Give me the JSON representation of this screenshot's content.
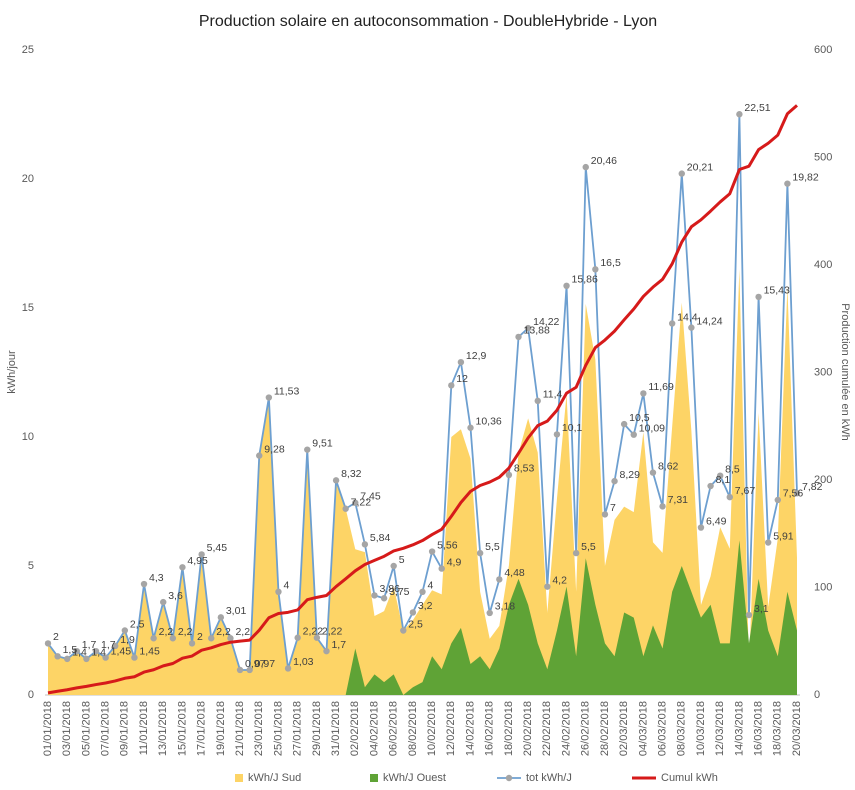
{
  "chart_data": {
    "type": "combo",
    "title": "Production solaire en autoconsommation - DoubleHybride - Lyon",
    "y_label": "kWh/jour",
    "y2_label": "Production cumulée en kWh",
    "categories": [
      "01/01/2018",
      null,
      "03/01/2018",
      null,
      "05/01/2018",
      null,
      "07/01/2018",
      null,
      "09/01/2018",
      null,
      "11/01/2018",
      null,
      "13/01/2018",
      null,
      "15/01/2018",
      null,
      "17/01/2018",
      null,
      "19/01/2018",
      null,
      "21/01/2018",
      null,
      "23/01/2018",
      null,
      "25/01/2018",
      null,
      "27/01/2018",
      null,
      "29/01/2018",
      null,
      "31/01/2018",
      null,
      "02/02/2018",
      null,
      "04/02/2018",
      null,
      "06/02/2018",
      null,
      "08/02/2018",
      null,
      "10/02/2018",
      null,
      "12/02/2018",
      null,
      "14/02/2018",
      null,
      "16/02/2018",
      null,
      "18/02/2018",
      null,
      "20/02/2018",
      null,
      "22/02/2018",
      null,
      "24/02/2018",
      null,
      "26/02/2018",
      null,
      "28/02/2018",
      null,
      "02/03/2018",
      null,
      "04/03/2018",
      null,
      "06/03/2018",
      null,
      "08/03/2018",
      null,
      "10/03/2018",
      null,
      "12/03/2018",
      null,
      "14/03/2018",
      null,
      "16/03/2018",
      null,
      "18/03/2018",
      null,
      "20/03/2018"
    ],
    "ylim": [
      0,
      25
    ],
    "yticks": [
      0,
      5,
      10,
      15,
      20,
      25
    ],
    "y2lim": [
      0,
      600
    ],
    "y2ticks": [
      0,
      100,
      200,
      300,
      400,
      500,
      600
    ],
    "grid": false,
    "legend": "bottom",
    "series": [
      {
        "name": "kWh/J Sud",
        "kind": "area",
        "color": "#fdd466",
        "values": [
          2,
          1.5,
          1.4,
          1.7,
          1.4,
          1.7,
          1.45,
          1.9,
          2.5,
          1.45,
          4.3,
          2.2,
          3.6,
          2.2,
          4.95,
          2,
          5.45,
          2.2,
          3.01,
          2.2,
          0.97,
          0.97,
          9.28,
          11.53,
          4,
          1.03,
          2.22,
          9.51,
          2.22,
          1.7,
          8.32,
          7.22,
          5.65,
          5.54,
          3.06,
          3.25,
          4.2,
          2.5,
          2.9,
          3.5,
          4.06,
          3.9,
          10,
          10.3,
          9.16,
          4,
          2.18,
          2.68,
          5.03,
          9.38,
          10.72,
          9.4,
          3.2,
          7.6,
          11.66,
          4,
          15.16,
          13,
          5,
          6.79,
          7.3,
          7.09,
          10.19,
          5.92,
          5.51,
          10.4,
          15.21,
          10.24,
          3.49,
          4.6,
          6.5,
          5.67,
          16.51,
          1.1,
          10.93,
          3.41,
          6.06,
          15.82,
          5.32
        ]
      },
      {
        "name": "kWh/J Ouest",
        "kind": "area",
        "color": "#5fa336",
        "values": [
          0,
          0,
          0,
          0,
          0,
          0,
          0,
          0,
          0,
          0,
          0,
          0,
          0,
          0,
          0,
          0,
          0,
          0,
          0,
          0,
          0,
          0,
          0,
          0,
          0,
          0,
          0,
          0,
          0,
          0,
          0,
          0,
          1.8,
          0.3,
          0.8,
          0.5,
          0.8,
          0,
          0.3,
          0.5,
          1.5,
          1,
          2,
          2.6,
          1.2,
          1.5,
          1,
          1.8,
          3.5,
          4.5,
          3.5,
          2,
          1,
          2.5,
          4.2,
          1.5,
          5.3,
          3.5,
          2,
          1.5,
          3.2,
          3,
          1.5,
          2.7,
          1.8,
          4,
          5,
          4,
          3,
          3.5,
          2,
          2,
          6,
          2,
          4.5,
          2.5,
          1.5,
          4,
          2.5
        ]
      },
      {
        "name": "tot kWh/J",
        "kind": "line",
        "color": "#6d9fd0",
        "marker_color": "#a5a5a5",
        "values": [
          2,
          1.5,
          1.4,
          1.7,
          1.4,
          1.7,
          1.45,
          1.9,
          2.5,
          1.45,
          4.3,
          2.2,
          3.6,
          2.2,
          4.95,
          2,
          5.45,
          2.2,
          3.01,
          2.2,
          0.97,
          0.97,
          9.28,
          11.53,
          4,
          1.03,
          2.22,
          9.51,
          2.22,
          1.7,
          8.32,
          7.22,
          7.45,
          5.84,
          3.86,
          3.75,
          5,
          2.5,
          3.2,
          4,
          5.56,
          4.9,
          12,
          12.9,
          10.36,
          5.5,
          3.18,
          4.48,
          8.53,
          13.88,
          14.22,
          11.4,
          4.2,
          10.1,
          15.86,
          5.5,
          20.46,
          16.5,
          7,
          8.29,
          10.5,
          10.09,
          11.69,
          8.62,
          7.31,
          14.4,
          20.21,
          14.24,
          6.49,
          8.1,
          8.5,
          7.67,
          22.51,
          3.1,
          15.43,
          5.91,
          7.56,
          19.82,
          7.82
        ],
        "value_labels": [
          "2",
          "1,5",
          "1,4",
          "1,7",
          "1,4",
          "1,7",
          "1,45",
          "1,9",
          "2,5",
          "1,45",
          "4,3",
          "2,2",
          "3,6",
          "2,2",
          "4,95",
          "2",
          "5,45",
          "2,2",
          "3,01",
          "2,2",
          "0,97",
          "0,97",
          "9,28",
          "11,53",
          "4",
          "1,03",
          "2,22",
          "9,51",
          "2,22",
          "1,7",
          "8,32",
          "7,22",
          "7,45",
          "5,84",
          "3,86",
          "3,75",
          "5",
          "2,5",
          "3,2",
          "4",
          "5,56",
          "4,9",
          "12",
          "12,9",
          "10,36",
          "5,5",
          "3,18",
          "4,48",
          "8,53",
          "13,88",
          "14,22",
          "11,4",
          "4,2",
          "10,1",
          "15,86",
          "5,5",
          "20,46",
          "16,5",
          "7",
          "8,29",
          "10,5",
          "10,09",
          "11,69",
          "8,62",
          "7,31",
          "14,4",
          "20,21",
          "14,24",
          "6,49",
          "8,1",
          "8,5",
          "7,67",
          "22,51",
          "3,1",
          "15,43",
          "5,91",
          "7,56",
          "19,82",
          "7,82"
        ]
      },
      {
        "name": "Cumul kWh",
        "kind": "line",
        "axis": "y2",
        "color": "#d61a1a",
        "values": [
          2,
          3.5,
          4.9,
          6.6,
          8,
          9.7,
          11.15,
          13.05,
          15.55,
          17,
          21.3,
          23.5,
          27.1,
          29.3,
          34.25,
          36.25,
          41.7,
          43.9,
          46.91,
          49.11,
          50.08,
          51.05,
          60.33,
          71.86,
          75.86,
          76.89,
          79.11,
          88.62,
          90.84,
          92.54,
          100.86,
          108.08,
          115.53,
          121.37,
          125.23,
          128.98,
          133.98,
          136.48,
          139.68,
          143.68,
          149.24,
          154.14,
          166.14,
          179.04,
          189.4,
          194.9,
          198.08,
          202.56,
          211.09,
          224.97,
          239.19,
          250.59,
          254.79,
          264.89,
          280.75,
          286.25,
          306.71,
          323.21,
          330.21,
          338.5,
          349,
          359.09,
          370.78,
          379.4,
          386.71,
          401.11,
          421.32,
          435.56,
          442.05,
          450.15,
          458.65,
          466.32,
          488.83,
          491.93,
          507.36,
          513.27,
          520.83,
          540.65,
          548.47
        ]
      }
    ]
  }
}
